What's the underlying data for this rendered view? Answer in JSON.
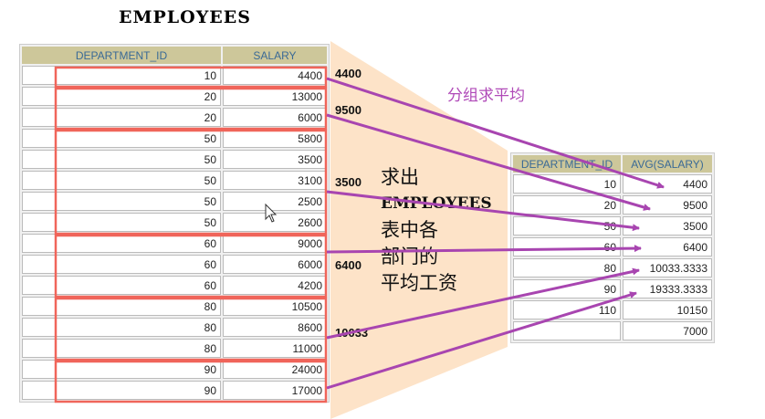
{
  "title": "EMPLOYEES",
  "left_table": {
    "headers": [
      "DEPARTMENT_ID",
      "SALARY"
    ],
    "rows": [
      [
        "10",
        "4400"
      ],
      [
        "20",
        "13000"
      ],
      [
        "20",
        "6000"
      ],
      [
        "50",
        "5800"
      ],
      [
        "50",
        "3500"
      ],
      [
        "50",
        "3100"
      ],
      [
        "50",
        "2500"
      ],
      [
        "50",
        "2600"
      ],
      [
        "60",
        "9000"
      ],
      [
        "60",
        "6000"
      ],
      [
        "60",
        "4200"
      ],
      [
        "80",
        "10500"
      ],
      [
        "80",
        "8600"
      ],
      [
        "80",
        "11000"
      ],
      [
        "90",
        "24000"
      ],
      [
        "90",
        "17000"
      ]
    ]
  },
  "right_table": {
    "headers": [
      "DEPARTMENT_ID",
      "AVG(SALARY)"
    ],
    "rows": [
      [
        "10",
        "4400"
      ],
      [
        "20",
        "9500"
      ],
      [
        "50",
        "3500"
      ],
      [
        "60",
        "6400"
      ],
      [
        "80",
        "10033.3333"
      ],
      [
        "90",
        "19333.3333"
      ],
      [
        "110",
        "10150"
      ],
      [
        "",
        "7000"
      ]
    ]
  },
  "avg_labels": [
    "4400",
    "9500",
    "3500",
    "6400",
    "10033"
  ],
  "group_label": "分组求平均",
  "description": [
    "求出",
    "EMPLOYEES",
    "表中各",
    "部门的",
    "平均工资"
  ],
  "colors": {
    "group_box": "#f0655a",
    "arrow": "#a845b0",
    "highlight": "#fde3c8",
    "header_bg": "#cdc79a"
  }
}
